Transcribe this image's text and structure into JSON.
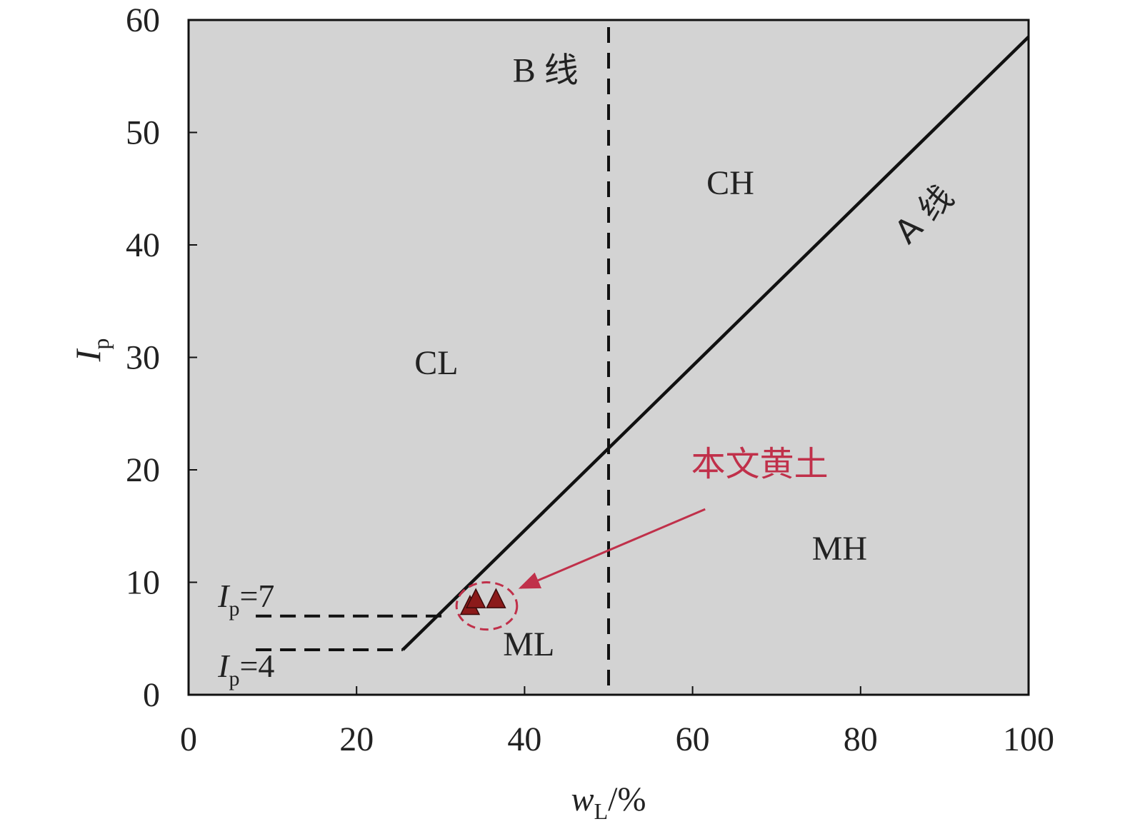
{
  "chart_data": {
    "type": "scatter",
    "xlabel": {
      "main": "w",
      "sub": "L",
      "suffix": "/%"
    },
    "ylabel": {
      "main": "I",
      "sub": "p"
    },
    "xlim": [
      0,
      100
    ],
    "ylim": [
      0,
      60
    ],
    "xticks": [
      0,
      20,
      40,
      60,
      80,
      100
    ],
    "yticks": [
      0,
      10,
      20,
      30,
      40,
      50,
      60
    ],
    "xtick_labels": [
      "0",
      "20",
      "40",
      "60",
      "80",
      "100"
    ],
    "ytick_labels": [
      "0",
      "10",
      "20",
      "30",
      "40",
      "50",
      "60"
    ],
    "grid": false,
    "plot_background": "#d3d3d3",
    "lines": {
      "a_line": {
        "label": "A 线",
        "points": [
          [
            25.5,
            4
          ],
          [
            100,
            58.5
          ]
        ],
        "style": "solid",
        "color": "#111111"
      },
      "b_line": {
        "label": "B 线",
        "x": 50,
        "style": "dashed",
        "color": "#111111"
      },
      "ip7": {
        "label_main": "I",
        "label_sub": "p",
        "label_suffix": "=7",
        "y": 7,
        "x_range": [
          8,
          30.5
        ],
        "style": "dashed"
      },
      "ip4": {
        "label_main": "I",
        "label_sub": "p",
        "label_suffix": "=4",
        "y": 4,
        "x_range": [
          8,
          25.5
        ],
        "style": "dashed"
      }
    },
    "regions": [
      {
        "label": "CL",
        "x": 29.5,
        "y": 28.5
      },
      {
        "label": "CH",
        "x": 64.5,
        "y": 44.5
      },
      {
        "label": "MH",
        "x": 77.5,
        "y": 12
      },
      {
        "label": "ML",
        "x": 40.5,
        "y": 3.5
      },
      {
        "label": "B 线",
        "x": 42.5,
        "y": 54.5
      }
    ],
    "series": [
      {
        "marker": "triangle",
        "color": "#8b1a1a",
        "x": [
          33.5,
          34.2,
          36.6
        ],
        "y": [
          7.8,
          8.4,
          8.4
        ]
      }
    ],
    "callout": {
      "label": "本文黄土",
      "color": "#c0304a",
      "text_at": [
        68,
        19.5
      ],
      "arrow_from": [
        61.5,
        16.5
      ],
      "arrow_to": [
        39.5,
        9.5
      ],
      "circle_center": [
        35.5,
        7.9
      ],
      "circle_radius": [
        3.6,
        2.1
      ]
    }
  }
}
